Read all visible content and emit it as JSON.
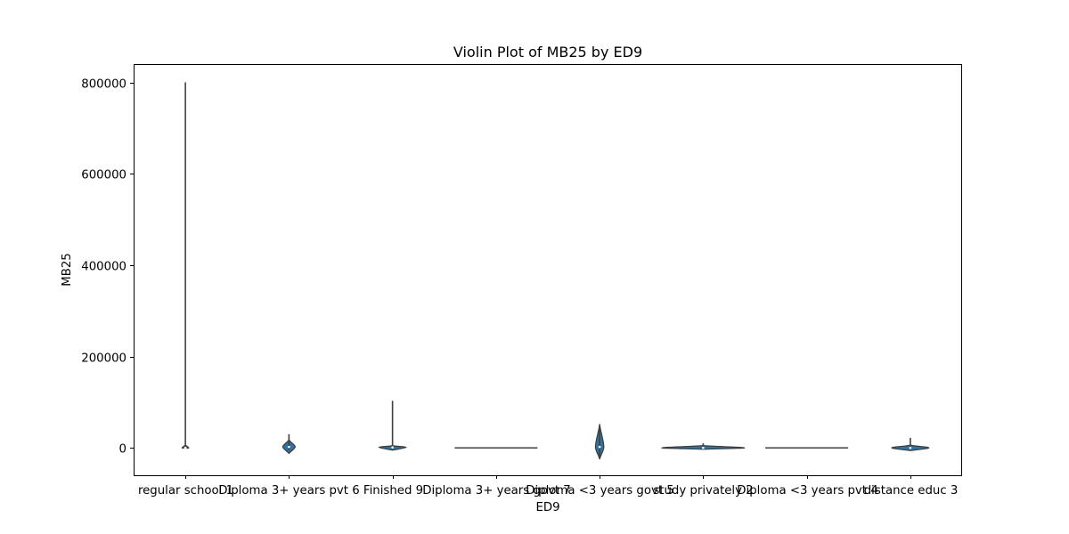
{
  "chart_data": {
    "type": "violin",
    "title": "Violin Plot of MB25 by ED9",
    "xlabel": "ED9",
    "ylabel": "MB25",
    "categories": [
      "regular school 1",
      "Diploma 3+ years pvt 6",
      "Finished 9",
      "Diploma 3+ years govt 7",
      "Diploma <3 years govt 5",
      "study privately 2",
      "Diploma <3 years pvt 4",
      "distance educ 3"
    ],
    "ylim": [
      -60000,
      840000
    ],
    "yticks": [
      0,
      200000,
      400000,
      600000,
      800000
    ],
    "ytick_labels": [
      "0",
      "200000",
      "400000",
      "600000",
      "800000"
    ],
    "grid": false,
    "violin_color": "#3274a1",
    "edge_color": "#3f3f3f",
    "violins": [
      {
        "min": 0,
        "max": 800000,
        "body_min": -1000,
        "body_max": 6000,
        "median": 0,
        "width": 0.08
      },
      {
        "min": -5000,
        "max": 30000,
        "body_min": -12000,
        "body_max": 18000,
        "median": 2000,
        "width": 0.15
      },
      {
        "min": 0,
        "max": 103000,
        "body_min": -5000,
        "body_max": 5000,
        "median": 1000,
        "width": 0.33
      },
      {
        "min": 0,
        "max": 0,
        "body_min": 0,
        "body_max": 0,
        "median": 0,
        "width": 1.0
      },
      {
        "min": -20000,
        "max": 50000,
        "body_min": -25000,
        "body_max": 52000,
        "median": 2000,
        "width": 0.1
      },
      {
        "min": 0,
        "max": 10000,
        "body_min": -3000,
        "body_max": 5000,
        "median": 0,
        "width": 1.0
      },
      {
        "min": 0,
        "max": 0,
        "body_min": 0,
        "body_max": 0,
        "median": 0,
        "width": 1.0
      },
      {
        "min": 0,
        "max": 22000,
        "body_min": -6000,
        "body_max": 6000,
        "median": 0,
        "width": 0.45
      }
    ]
  }
}
